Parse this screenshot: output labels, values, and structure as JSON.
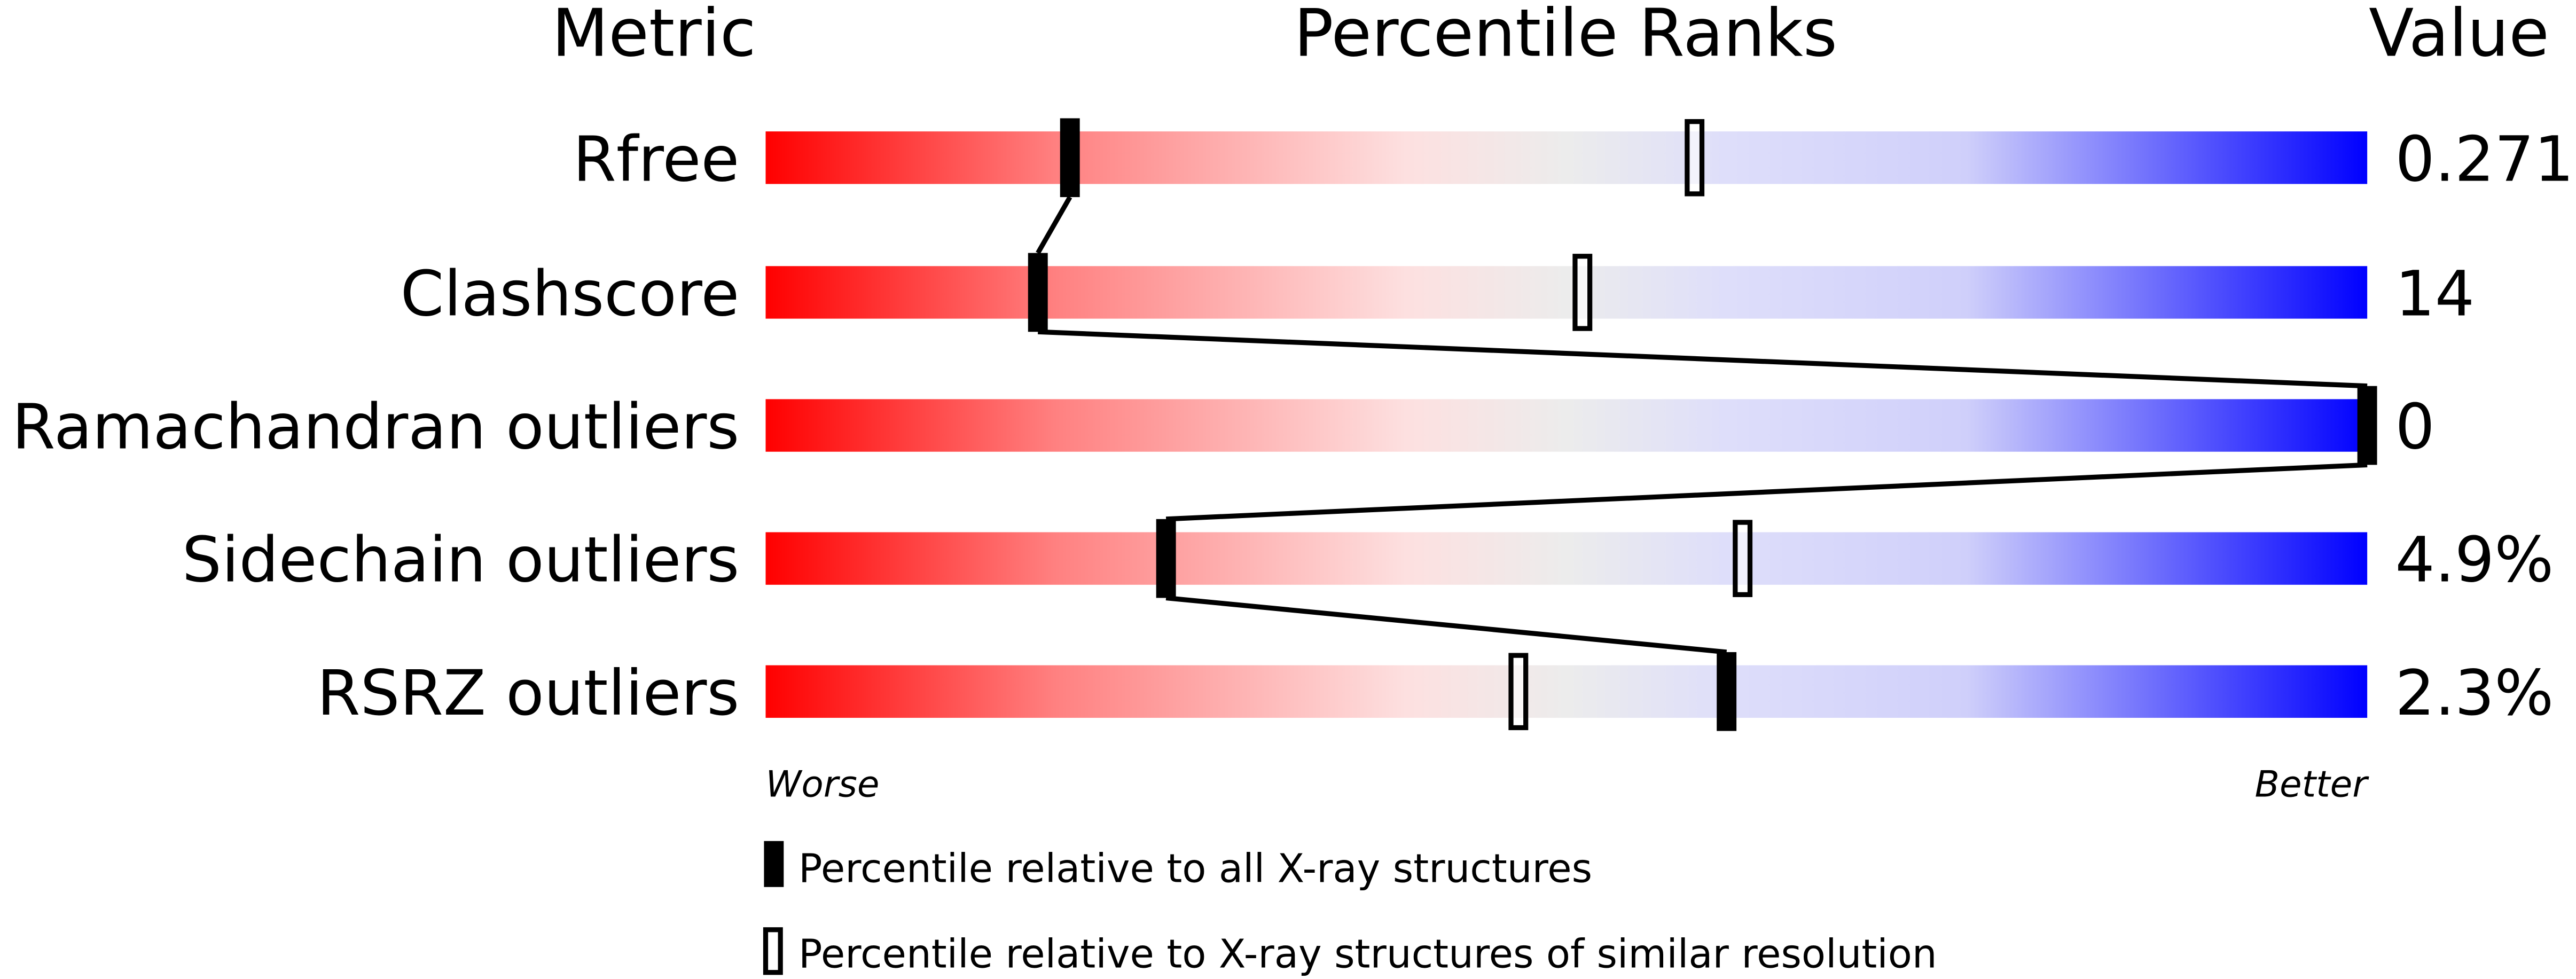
{
  "chart_data": {
    "type": "percentile-slider",
    "headers": {
      "metric": "Metric",
      "ranks": "Percentile Ranks",
      "value": "Value"
    },
    "xlim": [
      0,
      100
    ],
    "axis_labels": {
      "left": "Worse",
      "right": "Better"
    },
    "gradient_colors": [
      "#ff0000",
      "#fde0e0",
      "#ececec",
      "#dcdcfa",
      "#0000ff"
    ],
    "metrics": [
      {
        "name": "Rfree",
        "value": "0.271",
        "percentile_all": 19,
        "percentile_similar": 58
      },
      {
        "name": "Clashscore",
        "value": "14",
        "percentile_all": 17,
        "percentile_similar": 51
      },
      {
        "name": "Ramachandran outliers",
        "value": "0",
        "percentile_all": 100,
        "percentile_similar": null
      },
      {
        "name": "Sidechain outliers",
        "value": "4.9%",
        "percentile_all": 25,
        "percentile_similar": 61
      },
      {
        "name": "RSRZ outliers",
        "value": "2.3%",
        "percentile_all": 60,
        "percentile_similar": 47
      }
    ],
    "legend": [
      {
        "marker": "filled",
        "label": "Percentile relative to all X-ray structures"
      },
      {
        "marker": "open",
        "label": "Percentile relative to X-ray structures of similar resolution"
      }
    ]
  }
}
